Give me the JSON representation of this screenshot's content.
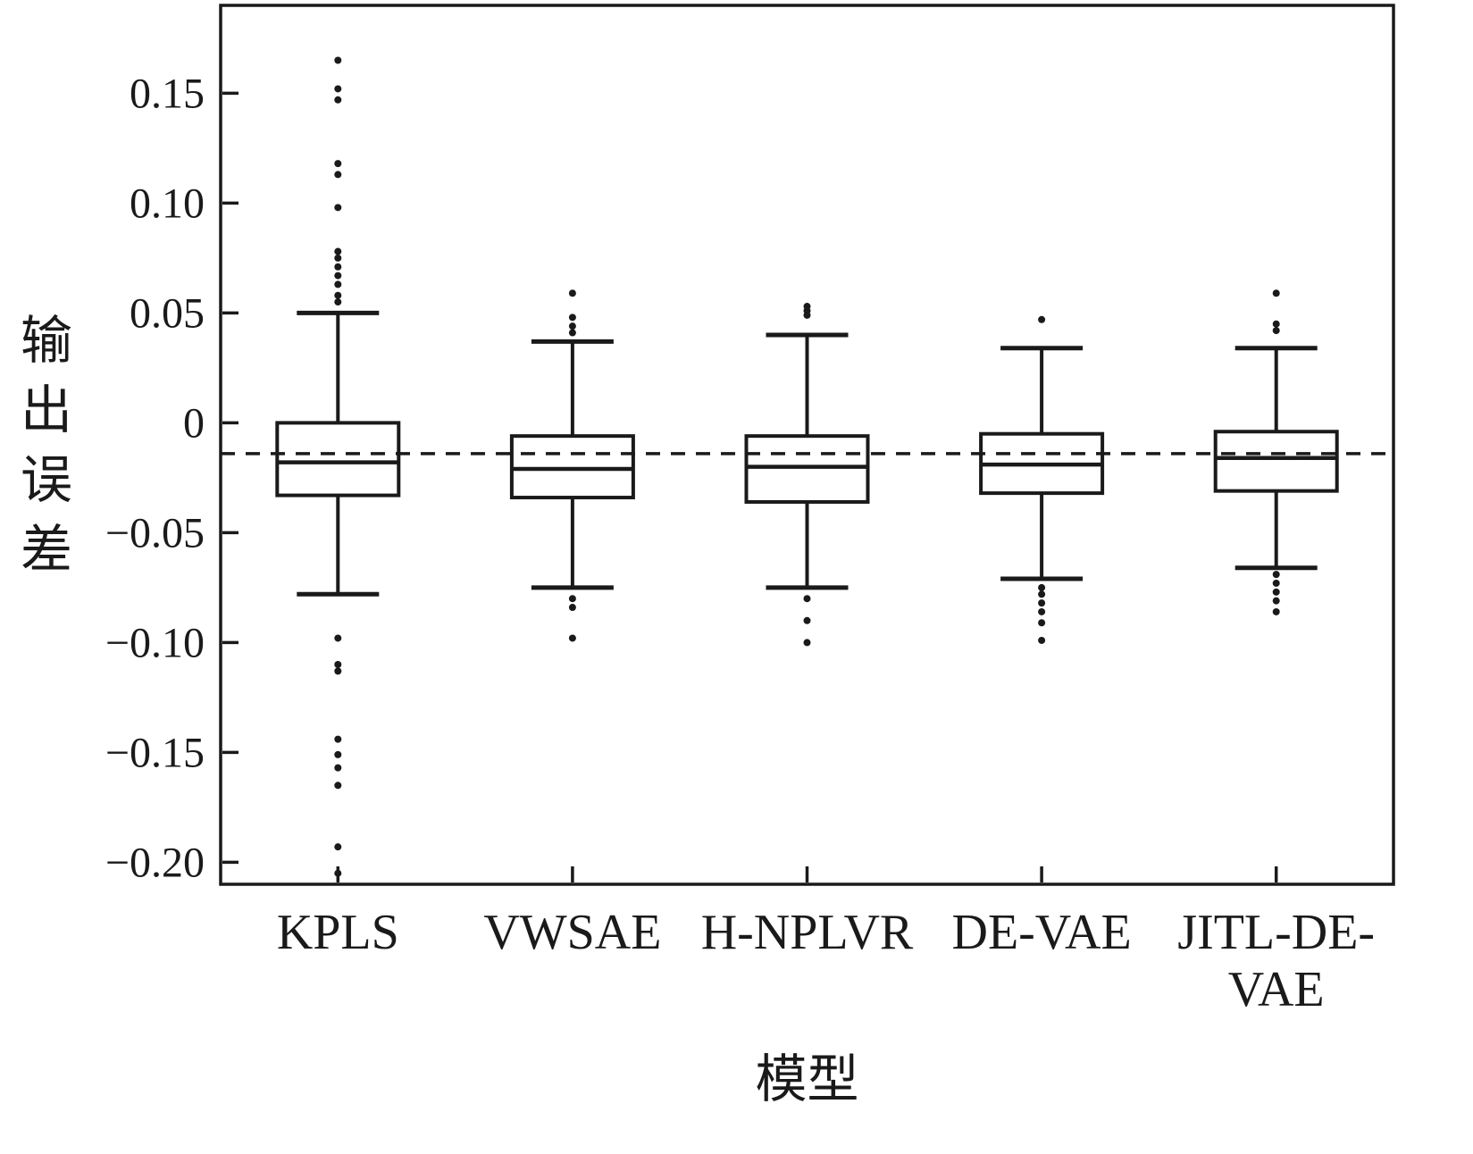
{
  "figure": {
    "background": "#ffffff",
    "axis_color": "#1a1a1a"
  },
  "chart_data": {
    "type": "boxplot",
    "title": "",
    "xlabel": "模型",
    "ylabel": "输出误差",
    "ylim": [
      -0.21,
      0.19
    ],
    "grid": false,
    "legend": "none",
    "yticks": [
      {
        "v": 0.15,
        "label": "0.15"
      },
      {
        "v": 0.1,
        "label": "0.10"
      },
      {
        "v": 0.05,
        "label": "0.05"
      },
      {
        "v": 0,
        "label": "0"
      },
      {
        "v": -0.05,
        "label": "−0.05"
      },
      {
        "v": -0.1,
        "label": "−0.10"
      },
      {
        "v": -0.15,
        "label": "−0.15"
      },
      {
        "v": -0.2,
        "label": "−0.20"
      }
    ],
    "reference_line": {
      "y": -0.014,
      "style": "dashed"
    },
    "categories": [
      "KPLS",
      "VWSAE",
      "H-NPLVR",
      "DE-VAE",
      "JITL-DE-VAE"
    ],
    "boxes": [
      {
        "label_lines": [
          "KPLS"
        ],
        "whisker_low": -0.078,
        "q1": -0.033,
        "median": -0.018,
        "q3": 0.0,
        "whisker_high": 0.05,
        "outliers_high": [
          0.165,
          0.152,
          0.147,
          0.118,
          0.113,
          0.098,
          0.078,
          0.075,
          0.071,
          0.067,
          0.063,
          0.058,
          0.055
        ],
        "outliers_low": [
          -0.098,
          -0.11,
          -0.113,
          -0.144,
          -0.151,
          -0.157,
          -0.165,
          -0.193,
          -0.205
        ]
      },
      {
        "label_lines": [
          "VWSAE"
        ],
        "whisker_low": -0.075,
        "q1": -0.034,
        "median": -0.021,
        "q3": -0.006,
        "whisker_high": 0.037,
        "outliers_high": [
          0.059,
          0.048,
          0.044,
          0.041
        ],
        "outliers_low": [
          -0.08,
          -0.084,
          -0.098
        ]
      },
      {
        "label_lines": [
          "H-NPLVR"
        ],
        "whisker_low": -0.075,
        "q1": -0.036,
        "median": -0.02,
        "q3": -0.006,
        "whisker_high": 0.04,
        "outliers_high": [
          0.053,
          0.051,
          0.049
        ],
        "outliers_low": [
          -0.08,
          -0.09,
          -0.1
        ]
      },
      {
        "label_lines": [
          "DE-VAE"
        ],
        "whisker_low": -0.071,
        "q1": -0.032,
        "median": -0.019,
        "q3": -0.005,
        "whisker_high": 0.034,
        "outliers_high": [
          0.047
        ],
        "outliers_low": [
          -0.075,
          -0.078,
          -0.082,
          -0.086,
          -0.091,
          -0.099
        ]
      },
      {
        "label_lines": [
          "JITL-DE-",
          "VAE"
        ],
        "whisker_low": -0.066,
        "q1": -0.031,
        "median": -0.016,
        "q3": -0.004,
        "whisker_high": 0.034,
        "outliers_high": [
          0.059,
          0.045,
          0.042
        ],
        "outliers_low": [
          -0.069,
          -0.073,
          -0.077,
          -0.081,
          -0.086
        ]
      }
    ]
  }
}
